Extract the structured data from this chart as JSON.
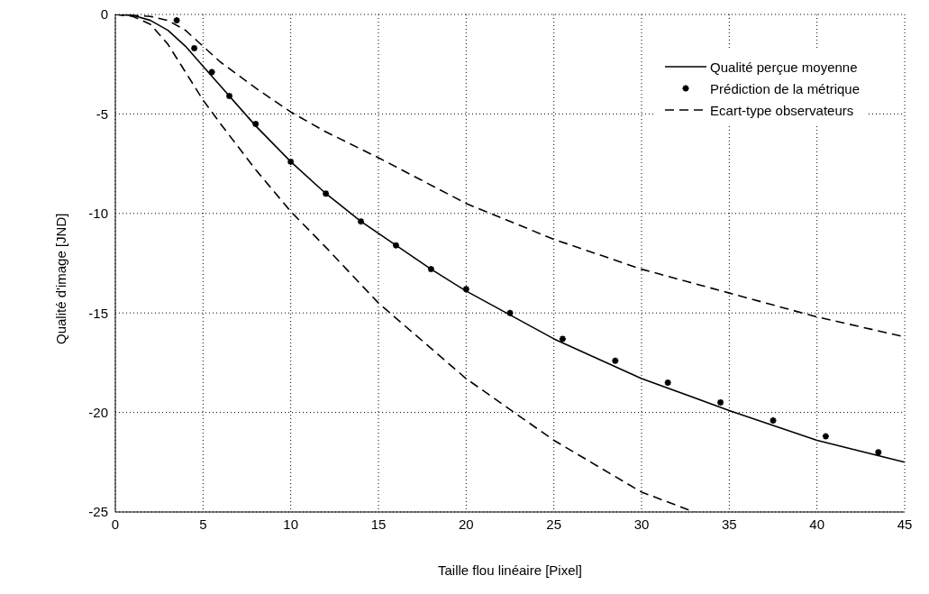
{
  "chart_data": {
    "type": "line",
    "xlabel": "Taille flou linéaire [Pixel]",
    "ylabel": "Qualité d'image [JND]",
    "xlim": [
      0,
      45
    ],
    "ylim": [
      -25,
      0
    ],
    "xticks": [
      0,
      5,
      10,
      15,
      20,
      25,
      30,
      35,
      40,
      45
    ],
    "yticks": [
      -25,
      -20,
      -15,
      -10,
      -5,
      0
    ],
    "grid": true,
    "legend": "top right",
    "series": [
      {
        "name": "Qualité perçue moyenne",
        "color": "#000000",
        "line_style": "solid",
        "marker": "none",
        "x": [
          0,
          1,
          2,
          3,
          4,
          5,
          6.5,
          8,
          10,
          12,
          14,
          16,
          18,
          20,
          22.5,
          25,
          30,
          35,
          40,
          45
        ],
        "values": [
          0,
          -0.05,
          -0.3,
          -0.8,
          -1.6,
          -2.6,
          -4.1,
          -5.6,
          -7.4,
          -9.0,
          -10.4,
          -11.6,
          -12.8,
          -13.9,
          -15.1,
          -16.3,
          -18.3,
          -19.9,
          -21.4,
          -22.5
        ]
      },
      {
        "name": "Prédiction de la métrique",
        "type": "scatter",
        "color": "#000000",
        "marker": "cross",
        "x": [
          3.5,
          4.5,
          5.5,
          6.5,
          8,
          10,
          12,
          14,
          16,
          18,
          20,
          22.5,
          25.5,
          28.5,
          31.5,
          34.5,
          37.5,
          40.5,
          43.5
        ],
        "values": [
          -0.3,
          -1.7,
          -2.9,
          -4.1,
          -5.5,
          -7.4,
          -9.0,
          -10.4,
          -11.6,
          -12.8,
          -13.8,
          -15.0,
          -16.3,
          -17.4,
          -18.5,
          -19.5,
          -20.4,
          -21.2,
          -22.0
        ]
      },
      {
        "name": "Ecart-type observateurs",
        "color": "#000000",
        "line_style": "dashed",
        "marker": "none",
        "x": [
          0,
          2,
          3,
          4,
          5,
          6,
          8,
          10,
          12,
          15,
          20,
          25,
          30,
          35,
          40,
          45
        ],
        "values": [
          0,
          -0.1,
          -0.3,
          -0.8,
          -1.6,
          -2.4,
          -3.7,
          -4.9,
          -5.9,
          -7.2,
          -9.5,
          -11.3,
          -12.8,
          -14.0,
          -15.2,
          -16.2
        ]
      },
      {
        "color": "#000000",
        "line_style": "dashed",
        "marker": "none",
        "x": [
          0,
          1,
          2,
          3,
          4,
          5,
          6,
          8,
          10,
          12,
          15,
          20,
          25,
          30,
          33
        ],
        "values": [
          0,
          -0.1,
          -0.5,
          -1.5,
          -2.9,
          -4.3,
          -5.5,
          -7.8,
          -9.9,
          -11.7,
          -14.5,
          -18.3,
          -21.4,
          -24.0,
          -25.0
        ]
      }
    ]
  }
}
